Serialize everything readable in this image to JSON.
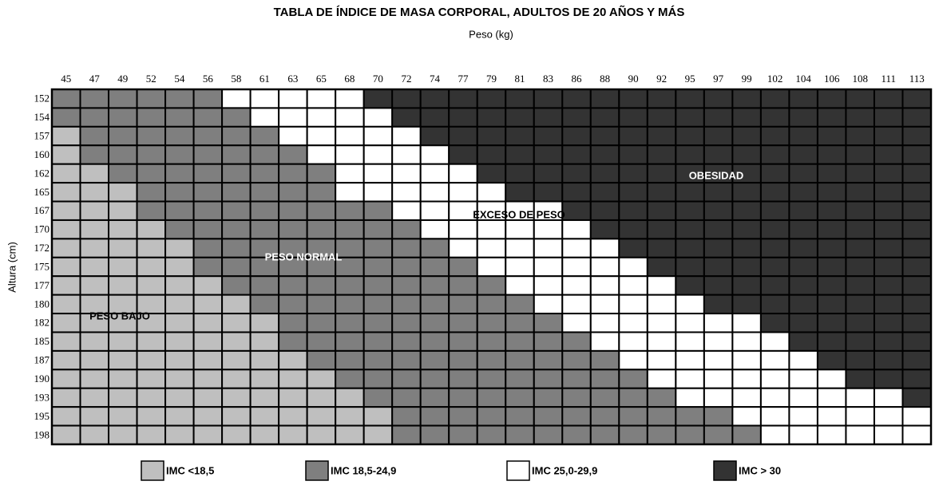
{
  "chart_data": {
    "type": "bmi-grid",
    "title": "TABLA DE ÍNDICE DE MASA CORPORAL, ADULTOS DE 20 AÑOS Y MÁS",
    "x_label": "Peso (kg)",
    "y_label": "Altura (cm)",
    "columns": [
      45,
      47,
      49,
      52,
      54,
      56,
      58,
      61,
      63,
      65,
      68,
      70,
      72,
      74,
      77,
      79,
      81,
      83,
      86,
      88,
      90,
      92,
      95,
      97,
      99,
      102,
      104,
      106,
      108,
      111,
      113
    ],
    "categories": [
      {
        "name": "IMC <18,5",
        "color": "#bfbfbf"
      },
      {
        "name": "IMC 18,5-24,9",
        "color": "#7f7f7f"
      },
      {
        "name": "IMC 25,0-29,9",
        "color": "#ffffff"
      },
      {
        "name": "IMC > 30",
        "color": "#333333"
      }
    ],
    "rows": [
      {
        "height": 152,
        "counts": [
          0,
          6,
          5,
          20
        ]
      },
      {
        "height": 154,
        "counts": [
          0,
          7,
          5,
          19
        ]
      },
      {
        "height": 157,
        "counts": [
          1,
          7,
          5,
          18
        ]
      },
      {
        "height": 160,
        "counts": [
          1,
          8,
          5,
          17
        ]
      },
      {
        "height": 162,
        "counts": [
          2,
          8,
          5,
          16
        ]
      },
      {
        "height": 165,
        "counts": [
          3,
          7,
          6,
          15
        ]
      },
      {
        "height": 167,
        "counts": [
          3,
          9,
          6,
          13
        ]
      },
      {
        "height": 170,
        "counts": [
          4,
          9,
          6,
          12
        ]
      },
      {
        "height": 172,
        "counts": [
          5,
          9,
          6,
          11
        ]
      },
      {
        "height": 175,
        "counts": [
          5,
          10,
          6,
          10
        ]
      },
      {
        "height": 177,
        "counts": [
          6,
          10,
          6,
          9
        ]
      },
      {
        "height": 180,
        "counts": [
          7,
          10,
          6,
          8
        ]
      },
      {
        "height": 182,
        "counts": [
          8,
          10,
          7,
          6
        ]
      },
      {
        "height": 185,
        "counts": [
          8,
          11,
          7,
          5
        ]
      },
      {
        "height": 187,
        "counts": [
          9,
          11,
          7,
          4
        ]
      },
      {
        "height": 190,
        "counts": [
          10,
          11,
          7,
          3
        ]
      },
      {
        "height": 193,
        "counts": [
          11,
          11,
          8,
          1
        ]
      },
      {
        "height": 195,
        "counts": [
          12,
          12,
          7,
          0
        ]
      },
      {
        "height": 198,
        "counts": [
          12,
          13,
          6,
          0
        ]
      }
    ],
    "annotations": [
      "PESO BAJO",
      "PESO NORMAL",
      "EXCESO DE PESO",
      "OBESIDAD"
    ]
  }
}
